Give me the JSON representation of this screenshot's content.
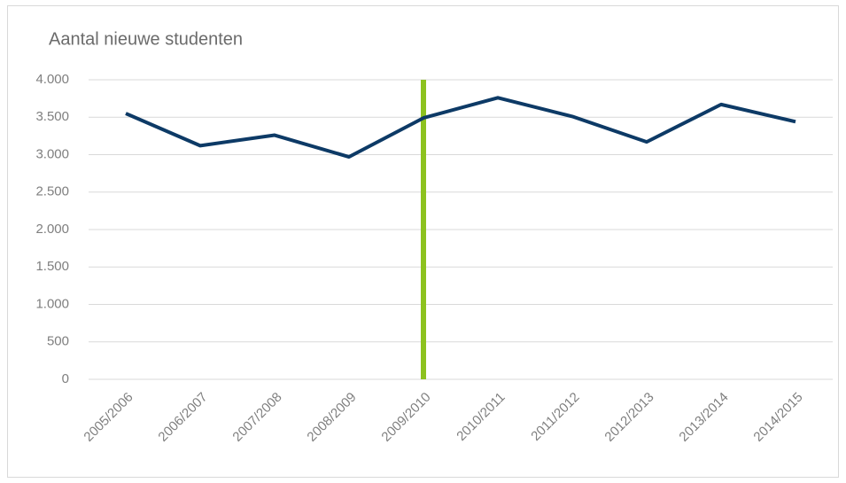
{
  "chart_data": {
    "type": "line",
    "title": "Aantal nieuwe studenten",
    "categories": [
      "2005/2006",
      "2006/2007",
      "2007/2008",
      "2008/2009",
      "2009/2010",
      "2010/2011",
      "2011/2012",
      "2012/2013",
      "2013/2014",
      "2014/2015"
    ],
    "series": [
      {
        "name": "Aantal nieuwe studenten",
        "color": "#0d3a66",
        "values": [
          3550,
          3120,
          3260,
          2970,
          3490,
          3760,
          3510,
          3170,
          3670,
          3440
        ]
      }
    ],
    "ylim": [
      0,
      4000
    ],
    "yticks": [
      0,
      500,
      {
        "value": 1000,
        "label": "1.000"
      },
      {
        "value": 1500,
        "label": "1.500"
      },
      {
        "value": 2000,
        "label": "2.000"
      },
      {
        "value": 2500,
        "label": "2.500"
      },
      {
        "value": 3000,
        "label": "3.000"
      },
      {
        "value": 3500,
        "label": "3.500"
      },
      {
        "value": 4000,
        "label": "4.000"
      }
    ],
    "grid": true,
    "highlight": {
      "category": "2009/2010",
      "color": "#8dc21f"
    }
  }
}
